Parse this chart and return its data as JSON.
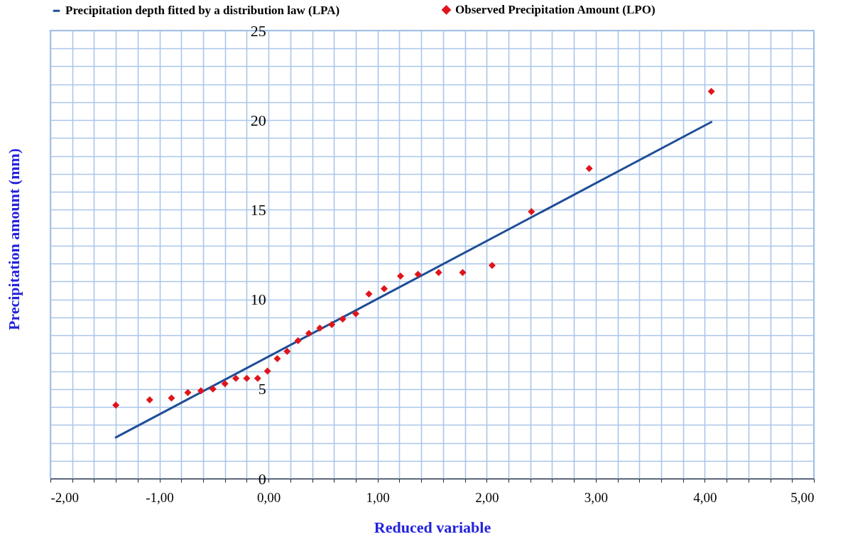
{
  "chart_data": {
    "type": "scatter",
    "xlabel": "Reduced variable",
    "ylabel": "Precipitation  amount   (mm)",
    "series": [
      {
        "name": "Precipitation depth fitted by a distribution law   (LPA)",
        "type": "line",
        "color": "#1f4e96",
        "line_style": "solid",
        "marker": "none",
        "x": [
          -1.4,
          4.06
        ],
        "values": [
          2.3,
          19.9
        ]
      },
      {
        "name": "Observed Precipitation Amount   (LPO)",
        "color": "#e0151b",
        "marker": "diamond",
        "x": [
          -1.4,
          -1.09,
          -0.89,
          -0.74,
          -0.62,
          -0.51,
          -0.4,
          -0.3,
          -0.2,
          -0.1,
          -0.01,
          0.08,
          0.17,
          0.27,
          0.37,
          0.47,
          0.58,
          0.68,
          0.8,
          0.92,
          1.06,
          1.21,
          1.37,
          1.56,
          1.78,
          2.05,
          2.41,
          2.94,
          4.06
        ],
        "values": [
          4.1,
          4.4,
          4.5,
          4.8,
          4.9,
          5.0,
          5.3,
          5.6,
          5.6,
          5.6,
          6.0,
          6.7,
          7.1,
          7.7,
          8.1,
          8.4,
          8.6,
          8.9,
          9.2,
          10.3,
          10.6,
          11.3,
          11.4,
          11.5,
          11.5,
          11.9,
          14.9,
          17.3,
          21.6
        ]
      }
    ],
    "xlim": [
      -2,
      5
    ],
    "xticks": [
      {
        "value": -2,
        "label": "-2,00"
      },
      {
        "value": -1.8,
        "label": null
      },
      {
        "value": -1.6,
        "label": null
      },
      {
        "value": -1.4,
        "label": null
      },
      {
        "value": -1.2,
        "label": null
      },
      {
        "value": -1,
        "label": "-1,00"
      },
      {
        "value": -0.8,
        "label": null
      },
      {
        "value": -0.6,
        "label": null
      },
      {
        "value": -0.4,
        "label": null
      },
      {
        "value": -0.2,
        "label": null
      },
      {
        "value": 0,
        "label": "0,00"
      },
      {
        "value": 0.2,
        "label": null
      },
      {
        "value": 0.4,
        "label": null
      },
      {
        "value": 0.6,
        "label": null
      },
      {
        "value": 0.8,
        "label": null
      },
      {
        "value": 1,
        "label": "1,00"
      },
      {
        "value": 1.2,
        "label": null
      },
      {
        "value": 1.4,
        "label": null
      },
      {
        "value": 1.6,
        "label": null
      },
      {
        "value": 1.8,
        "label": null
      },
      {
        "value": 2,
        "label": "2,00"
      },
      {
        "value": 2.2,
        "label": null
      },
      {
        "value": 2.4,
        "label": null
      },
      {
        "value": 2.6,
        "label": null
      },
      {
        "value": 2.8,
        "label": null
      },
      {
        "value": 3,
        "label": "3,00"
      },
      {
        "value": 3.2,
        "label": null
      },
      {
        "value": 3.4,
        "label": null
      },
      {
        "value": 3.6,
        "label": null
      },
      {
        "value": 3.8,
        "label": null
      },
      {
        "value": 4,
        "label": "4,00"
      },
      {
        "value": 4.2,
        "label": null
      },
      {
        "value": 4.4,
        "label": null
      },
      {
        "value": 4.6,
        "label": null
      },
      {
        "value": 4.8,
        "label": null
      },
      {
        "value": 5,
        "label": "5,00"
      }
    ],
    "ylim": [
      0,
      25
    ],
    "yticks": [
      0,
      {
        "value": 1,
        "label": null
      },
      {
        "value": 2,
        "label": null
      },
      {
        "value": 3,
        "label": null
      },
      {
        "value": 4,
        "label": null
      },
      5,
      {
        "value": 6,
        "label": null
      },
      {
        "value": 7,
        "label": null
      },
      {
        "value": 8,
        "label": null
      },
      {
        "value": 9,
        "label": null
      },
      10,
      {
        "value": 11,
        "label": null
      },
      {
        "value": 12,
        "label": null
      },
      {
        "value": 13,
        "label": null
      },
      {
        "value": 14,
        "label": null
      },
      15,
      {
        "value": 16,
        "label": null
      },
      {
        "value": 17,
        "label": null
      },
      {
        "value": 18,
        "label": null
      },
      {
        "value": 19,
        "label": null
      },
      20,
      {
        "value": 21,
        "label": null
      },
      {
        "value": 22,
        "label": null
      },
      {
        "value": 23,
        "label": null
      },
      {
        "value": 24,
        "label": null
      },
      25
    ],
    "grid": true,
    "legend": "top"
  }
}
